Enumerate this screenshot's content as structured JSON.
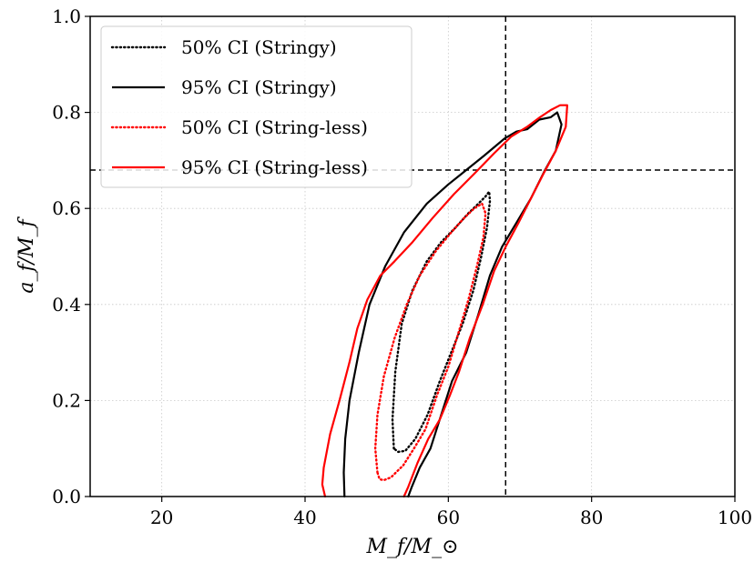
{
  "chart_data": {
    "type": "line",
    "title": "",
    "xlabel": "M_f/M_⊙",
    "ylabel": "a_f/M_f",
    "xlim": [
      10,
      100
    ],
    "ylim": [
      0.0,
      1.0
    ],
    "xticks": [
      20,
      40,
      60,
      80,
      100
    ],
    "yticks": [
      0.0,
      0.2,
      0.4,
      0.6,
      0.8,
      1.0
    ],
    "xtick_labels": [
      "20",
      "40",
      "60",
      "80",
      100
    ],
    "ytick_labels": [
      "0.0",
      "0.2",
      "0.4",
      "0.6",
      "0.8",
      "1.0"
    ],
    "grid": true,
    "legend_position": "top-left",
    "reference_lines": {
      "x": 68,
      "y": 0.68
    },
    "series": [
      {
        "name": "50% CI (Stringy)",
        "color": "#000000",
        "style": "dotted",
        "x": [
          52.4,
          52.2,
          52.6,
          53.5,
          55.0,
          57.0,
          59.0,
          61.0,
          62.8,
          64.2,
          65.2,
          65.7,
          65.8,
          65.4,
          64.6,
          63.5,
          62.0,
          60.4,
          58.8,
          57.1,
          55.4,
          54.0,
          53.0,
          52.4
        ],
        "y": [
          0.1,
          0.16,
          0.26,
          0.36,
          0.43,
          0.49,
          0.53,
          0.56,
          0.59,
          0.61,
          0.625,
          0.635,
          0.615,
          0.56,
          0.5,
          0.43,
          0.36,
          0.3,
          0.24,
          0.17,
          0.12,
          0.095,
          0.093,
          0.1
        ]
      },
      {
        "name": "95% CI (Stringy)",
        "color": "#000000",
        "style": "solid",
        "x": [
          45.5,
          45.4,
          45.6,
          46.2,
          47.5,
          49.0,
          51.2,
          53.8,
          57.0,
          60.0,
          62.5,
          65.0,
          67.8,
          69.5,
          71.0,
          72.7,
          74.3,
          75.2,
          75.8,
          75.0,
          73.5,
          71.5,
          69.5,
          67.5,
          65.8,
          64.2,
          62.5,
          60.5,
          59.0,
          57.5,
          56.0,
          54.9,
          54.4
        ],
        "y": [
          0.0,
          0.05,
          0.12,
          0.2,
          0.3,
          0.4,
          0.48,
          0.55,
          0.61,
          0.65,
          0.68,
          0.71,
          0.745,
          0.76,
          0.765,
          0.785,
          0.79,
          0.8,
          0.775,
          0.72,
          0.68,
          0.62,
          0.57,
          0.52,
          0.46,
          0.38,
          0.3,
          0.24,
          0.17,
          0.1,
          0.06,
          0.02,
          0.0
        ]
      },
      {
        "name": "50% CI (String-less)",
        "color": "#ff0000",
        "style": "dotted",
        "x": [
          50.1,
          49.8,
          50.1,
          51.0,
          52.5,
          54.2,
          56.0,
          58.2,
          60.4,
          62.2,
          63.6,
          64.7,
          65.2,
          64.9,
          64.0,
          62.8,
          61.4,
          60.0,
          58.4,
          56.8,
          55.2,
          53.7,
          52.0,
          51.0,
          50.4,
          50.1
        ],
        "y": [
          0.05,
          0.1,
          0.17,
          0.25,
          0.33,
          0.4,
          0.46,
          0.51,
          0.55,
          0.58,
          0.6,
          0.61,
          0.59,
          0.54,
          0.48,
          0.41,
          0.34,
          0.27,
          0.21,
          0.14,
          0.1,
          0.065,
          0.04,
          0.034,
          0.036,
          0.05
        ]
      },
      {
        "name": "95% CI (String-less)",
        "color": "#ff0000",
        "style": "solid",
        "x": [
          42.8,
          42.4,
          42.6,
          43.5,
          44.8,
          46.2,
          47.3,
          48.7,
          50.5,
          52.5,
          55.0,
          57.8,
          60.8,
          63.8,
          66.4,
          68.8,
          71.0,
          72.8,
          74.3,
          75.6,
          76.6,
          76.4,
          75.0,
          73.2,
          71.5,
          69.8,
          68.0,
          66.4,
          64.8,
          63.0,
          61.5,
          60.2,
          58.8,
          57.2,
          55.7,
          54.4,
          53.8
        ],
        "y": [
          0.0,
          0.025,
          0.06,
          0.13,
          0.2,
          0.28,
          0.35,
          0.41,
          0.46,
          0.49,
          0.53,
          0.58,
          0.63,
          0.675,
          0.715,
          0.75,
          0.77,
          0.79,
          0.805,
          0.815,
          0.815,
          0.77,
          0.72,
          0.67,
          0.62,
          0.57,
          0.52,
          0.47,
          0.4,
          0.33,
          0.26,
          0.21,
          0.16,
          0.12,
          0.07,
          0.02,
          0.0
        ]
      }
    ]
  }
}
